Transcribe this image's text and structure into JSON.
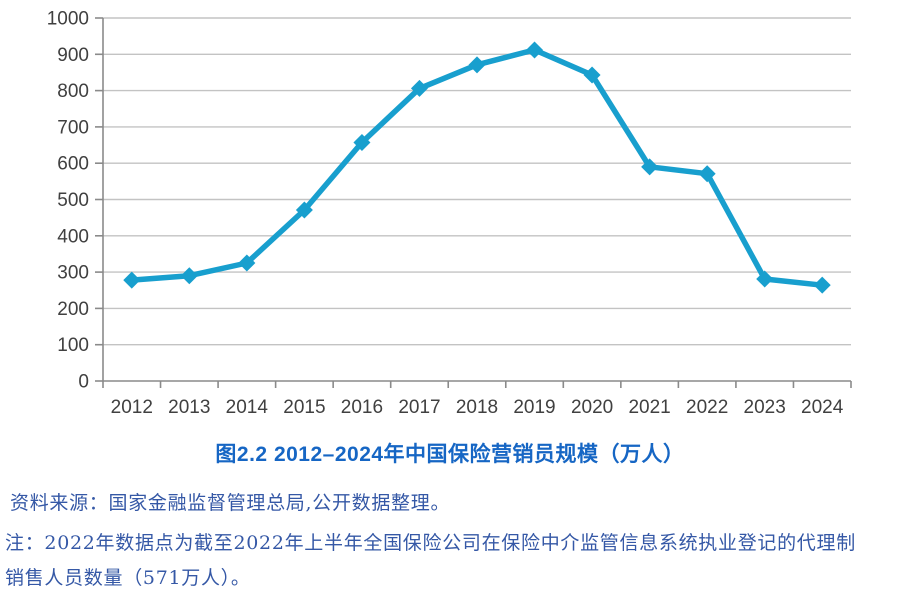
{
  "colors": {
    "line": "#189fce",
    "title": "#1666c4",
    "footnote": "#3558a6",
    "grid": "#c3c3c3",
    "axis": "#8a8a8a",
    "tick_label": "#404040",
    "background": "#ffffff"
  },
  "chart_data": {
    "type": "line",
    "title": "图2.2  2012–2024年中国保险营销员规模（万人）",
    "categories": [
      "2012",
      "2013",
      "2014",
      "2015",
      "2016",
      "2017",
      "2018",
      "2019",
      "2020",
      "2021",
      "2022",
      "2023",
      "2024"
    ],
    "values": [
      278,
      290,
      325,
      471,
      657,
      806,
      871,
      912,
      843,
      590,
      571,
      281,
      264
    ],
    "xlabel": "",
    "ylabel": "",
    "ylim": [
      0,
      1000
    ],
    "ytick_step": 100,
    "grid": true,
    "legend": false,
    "marker": "diamond"
  },
  "footnotes": {
    "source": "资料来源：国家金融监督管理总局,公开数据整理。",
    "note_lines": [
      "注：2022年数据点为截至2022年上半年全国保险公司在保险中介监管信息系统执业登记的代理制",
      "销售人员数量（571万人）。"
    ]
  }
}
